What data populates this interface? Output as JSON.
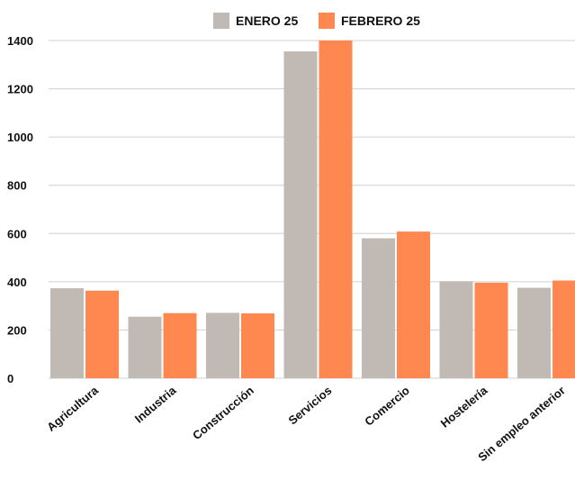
{
  "chart_data": {
    "type": "bar",
    "categories": [
      "Agricultura",
      "Industria",
      "Construcción",
      "Servicios",
      "Comercio",
      "Hostelería",
      "Sin empleo anterior"
    ],
    "series": [
      {
        "name": "ENERO 25",
        "color": "#c1bab4",
        "values": [
          373,
          255,
          271,
          1355,
          580,
          402,
          375
        ]
      },
      {
        "name": "FEBRERO 25",
        "color": "#ff8750",
        "values": [
          363,
          270,
          269,
          1400,
          608,
          396,
          405
        ]
      }
    ],
    "yticks": [
      "0",
      "200",
      "400",
      "600",
      "800",
      "1000",
      "1200",
      "1400"
    ],
    "ylim": [
      0,
      1400
    ],
    "title": "",
    "xlabel": "",
    "ylabel": "",
    "grid": true,
    "legend_position": "top-center"
  }
}
